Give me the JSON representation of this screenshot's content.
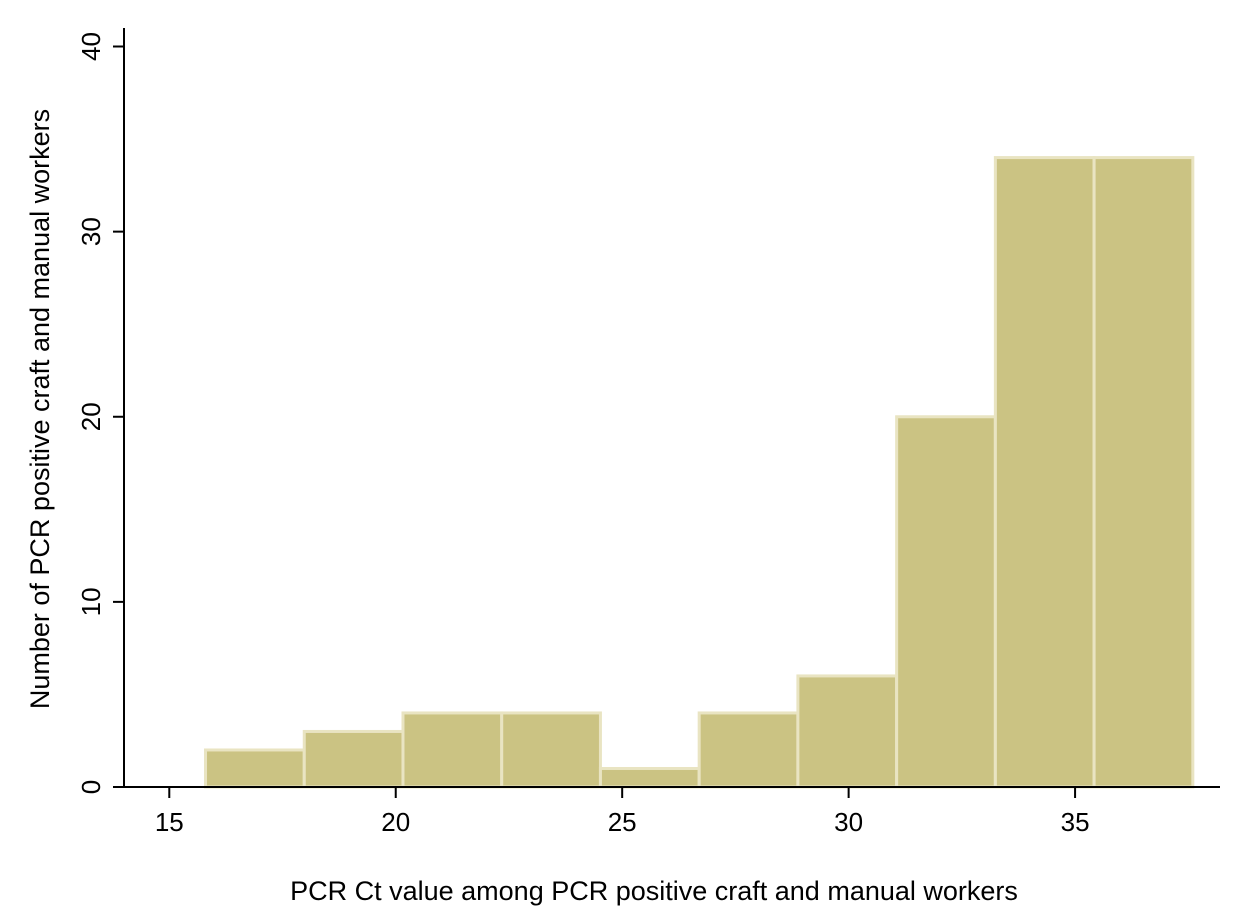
{
  "colors": {
    "bar_fill": "#cbc383",
    "bar_stroke": "#e9e4c2",
    "axis": "#000000"
  },
  "chart_data": {
    "type": "bar",
    "subtype": "histogram",
    "xlabel": "PCR Ct value among PCR positive craft and manual workers",
    "ylabel": "Number of PCR positive craft and manual workers",
    "xlim": [
      14,
      38.2
    ],
    "ylim": [
      0,
      41
    ],
    "x_ticks": [
      15,
      20,
      25,
      30,
      35
    ],
    "y_ticks": [
      0,
      10,
      20,
      30,
      40
    ],
    "grid": false,
    "legend": "none",
    "bins": [
      {
        "x0": 15.8,
        "x1": 17.98,
        "value": 2
      },
      {
        "x0": 17.98,
        "x1": 20.16,
        "value": 3
      },
      {
        "x0": 20.16,
        "x1": 22.34,
        "value": 4
      },
      {
        "x0": 22.34,
        "x1": 24.52,
        "value": 4
      },
      {
        "x0": 24.52,
        "x1": 26.7,
        "value": 1
      },
      {
        "x0": 26.7,
        "x1": 28.88,
        "value": 4
      },
      {
        "x0": 28.88,
        "x1": 31.06,
        "value": 6
      },
      {
        "x0": 31.06,
        "x1": 33.24,
        "value": 20
      },
      {
        "x0": 33.24,
        "x1": 35.42,
        "value": 34
      },
      {
        "x0": 35.42,
        "x1": 37.6,
        "value": 34
      }
    ]
  }
}
